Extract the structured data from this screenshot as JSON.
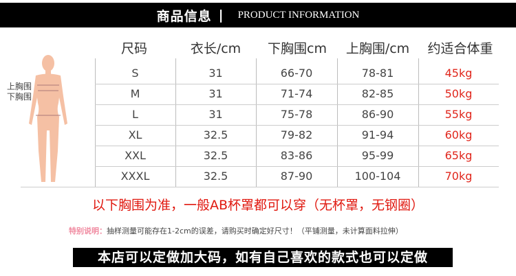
{
  "header": {
    "title_cn": "商品信息",
    "separator": "|",
    "title_en": "PRODUCT INFORMATION"
  },
  "figure": {
    "label_upper": "上胸围",
    "label_lower": "下胸围",
    "skin_color": "#f5c0a4"
  },
  "table": {
    "columns": [
      "尺码",
      "衣长/cm",
      "下胸围cm",
      "上胸围/cm",
      "约适合体重"
    ],
    "rows": [
      [
        "S",
        "31",
        "66-70",
        "78-81",
        "45kg"
      ],
      [
        "M",
        "31",
        "71-74",
        "82-85",
        "50kg"
      ],
      [
        "L",
        "31",
        "75-78",
        "86-90",
        "55kg"
      ],
      [
        "XL",
        "32.5",
        "79-82",
        "91-94",
        "60kg"
      ],
      [
        "XXL",
        "32.5",
        "83-86",
        "95-99",
        "65kg"
      ],
      [
        "XXXL",
        "32.5",
        "87-90",
        "100-104",
        "70kg"
      ]
    ]
  },
  "notice": "以下胸围为准，一般AB杯罩都可以穿（无杯罩，无钢圈）",
  "note": {
    "key": "特别说明：",
    "text": "抽样测量可能存在1-2cm的误差，请购买时确定好尺寸！（平铺测量，未计算面料拉伸）"
  },
  "bottom_banner": "本店可以定做加大码，如有自己喜欢的款式也可以定做",
  "colors": {
    "accent_red": "#e0251b",
    "note_pink": "#f08aa0"
  }
}
